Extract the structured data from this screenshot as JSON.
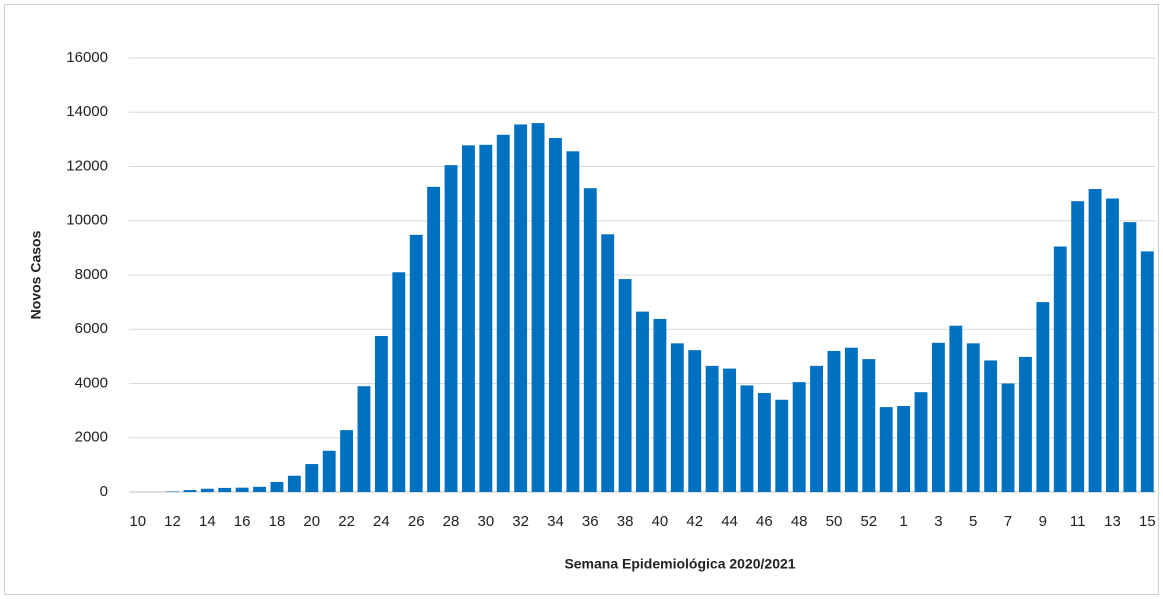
{
  "chart_data": {
    "type": "bar",
    "x_label": "Semana Epidemiológica 2020/2021",
    "y_label": "Novos Casos",
    "categories": [
      "10",
      null,
      "12",
      null,
      "14",
      null,
      "16",
      null,
      "18",
      null,
      "20",
      null,
      "22",
      null,
      "24",
      null,
      "26",
      null,
      "28",
      null,
      "30",
      null,
      "32",
      null,
      "34",
      null,
      "36",
      null,
      "38",
      null,
      "40",
      null,
      "42",
      null,
      "44",
      null,
      "46",
      null,
      "48",
      null,
      "50",
      null,
      "52",
      null,
      "1",
      null,
      "3",
      null,
      "5",
      null,
      "7",
      null,
      "9",
      null,
      "11",
      null,
      "13",
      null,
      "15"
    ],
    "values": [
      0,
      0,
      20,
      70,
      120,
      150,
      160,
      190,
      370,
      600,
      1030,
      1520,
      2280,
      3900,
      5750,
      8100,
      9480,
      11250,
      12050,
      12780,
      12800,
      13170,
      13550,
      13600,
      13050,
      12560,
      11200,
      9500,
      7850,
      6650,
      6380,
      5480,
      5230,
      4650,
      4550,
      3930,
      3650,
      3400,
      4050,
      4650,
      5200,
      5320,
      4900,
      3130,
      3170,
      3680,
      5500,
      6130,
      5480,
      4850,
      4000,
      4980,
      7000,
      9050,
      10720,
      11170,
      10820,
      9950,
      8870
    ],
    "color": "#0070c0",
    "ylim": [
      0,
      16000
    ],
    "yticks": [
      0,
      2000,
      4000,
      6000,
      8000,
      10000,
      12000,
      14000,
      16000
    ],
    "grid": true
  }
}
